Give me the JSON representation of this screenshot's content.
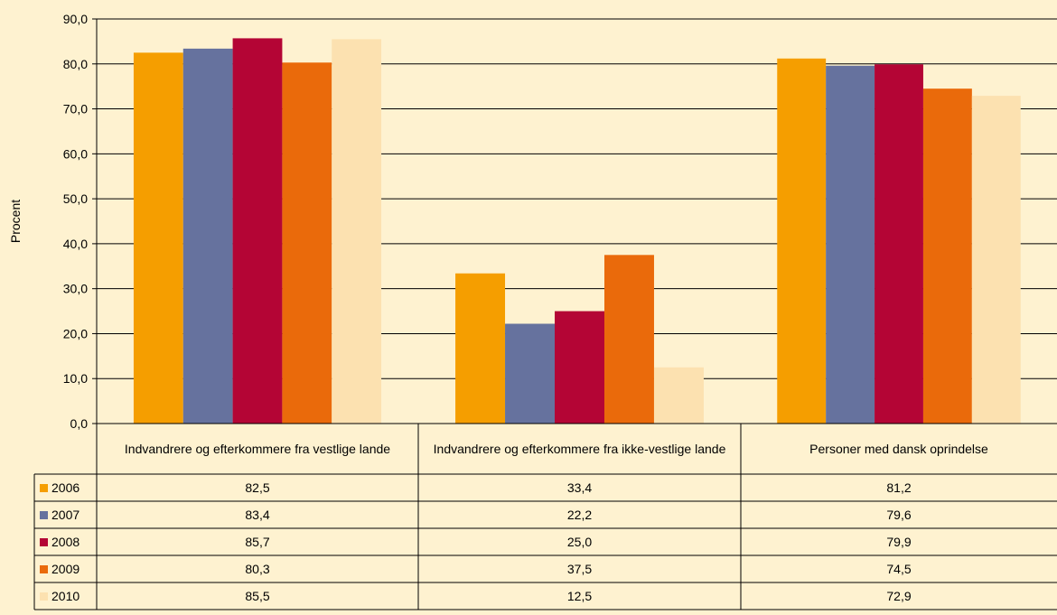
{
  "chart_data": {
    "type": "bar",
    "ylabel": "Procent",
    "ylim": [
      0,
      90
    ],
    "yticks": [
      "0,0",
      "10,0",
      "20,0",
      "30,0",
      "40,0",
      "50,0",
      "60,0",
      "70,0",
      "80,0",
      "90,0"
    ],
    "categories": [
      "Indvandrere og efterkommere fra vestlige lande",
      "Indvandrere og efterkommere fra ikke-vestlige lande",
      "Personer med dansk oprindelse"
    ],
    "series": [
      {
        "name": "2006",
        "color": "#F59E00",
        "values": [
          82.5,
          33.4,
          81.2
        ],
        "labels": [
          "82,5",
          "33,4",
          "81,2"
        ]
      },
      {
        "name": "2007",
        "color": "#66729E",
        "values": [
          83.4,
          22.2,
          79.6
        ],
        "labels": [
          "83,4",
          "22,2",
          "79,6"
        ]
      },
      {
        "name": "2008",
        "color": "#B40535",
        "values": [
          85.7,
          25.0,
          79.9
        ],
        "labels": [
          "85,7",
          "25,0",
          "79,9"
        ]
      },
      {
        "name": "2009",
        "color": "#EA6A0B",
        "values": [
          80.3,
          37.5,
          74.5
        ],
        "labels": [
          "80,3",
          "37,5",
          "74,5"
        ]
      },
      {
        "name": "2010",
        "color": "#FCE1B0",
        "values": [
          85.5,
          12.5,
          72.9
        ],
        "labels": [
          "85,5",
          "12,5",
          "72,9"
        ]
      }
    ],
    "grid": true,
    "legend": "data-table"
  }
}
